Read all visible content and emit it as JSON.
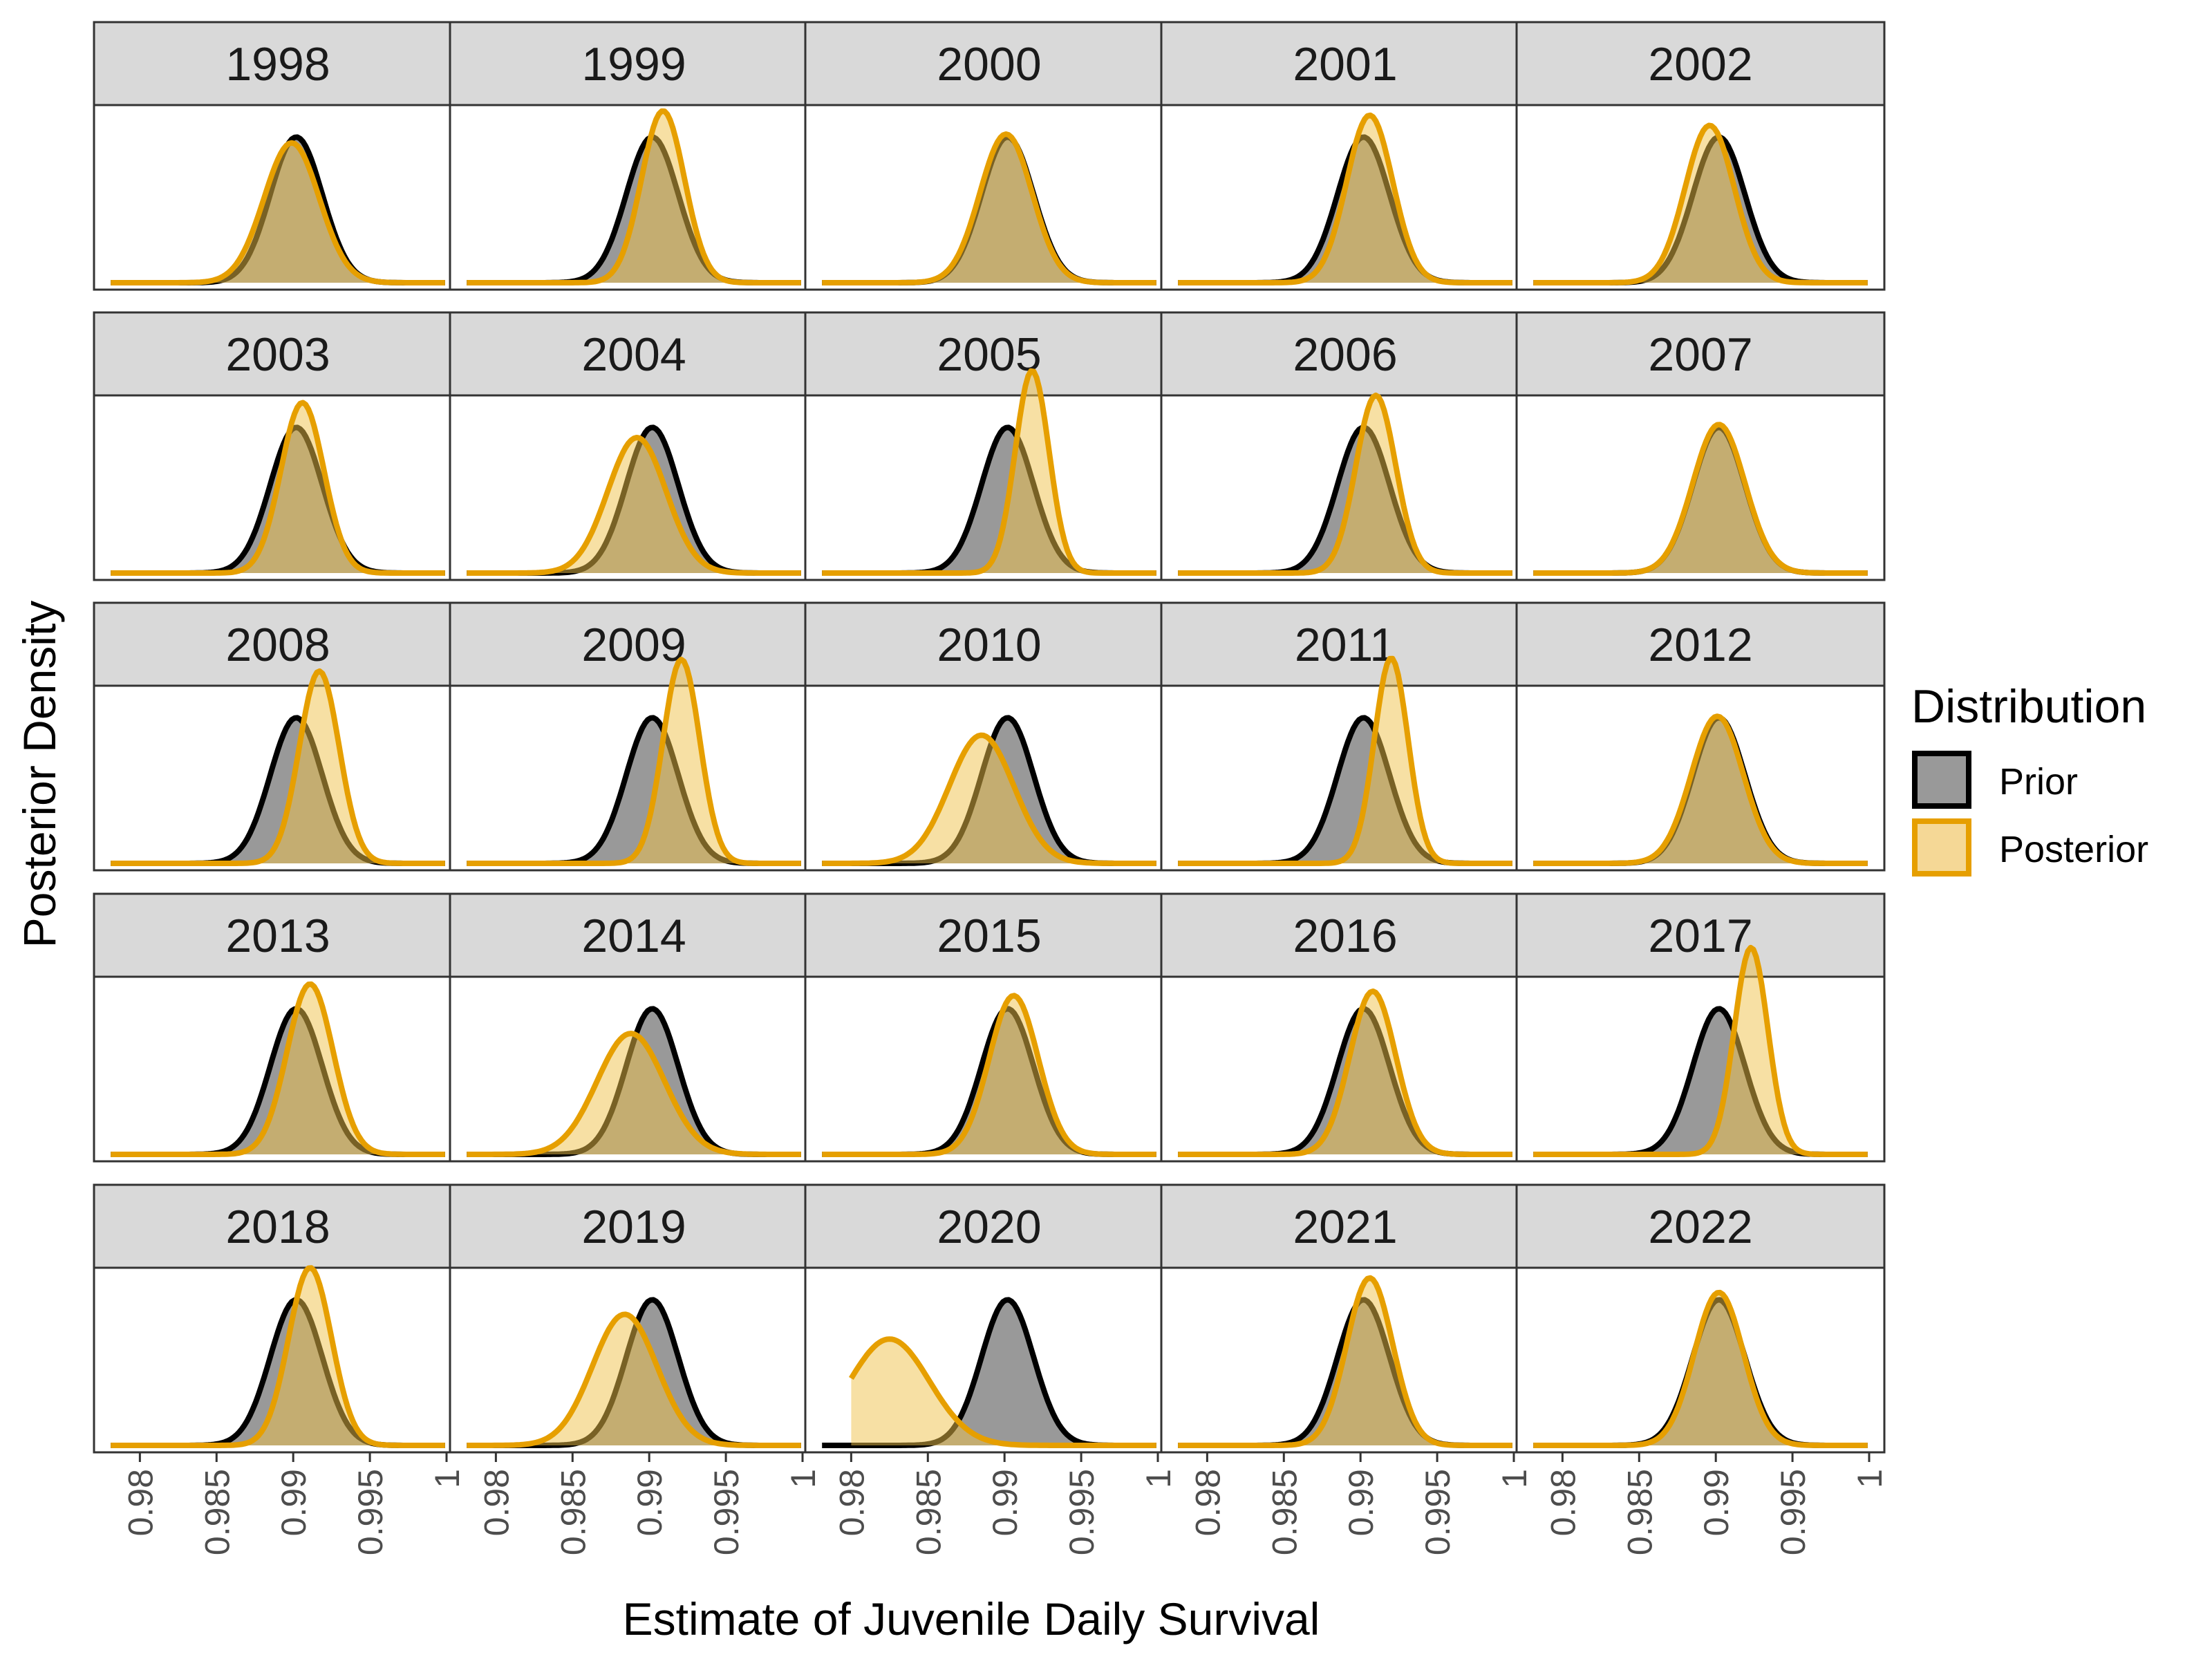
{
  "chart_data": {
    "type": "area",
    "subtype": "faceted density plot",
    "xlabel": "Estimate of Juvenile Daily Survival",
    "ylabel": "Posterior Density",
    "xlim": [
      0.978,
      1.0
    ],
    "x_ticks": [
      0.98,
      0.985,
      0.99,
      0.995,
      1
    ],
    "x_tick_labels": [
      "0.98",
      "0.985",
      "0.99",
      "0.995",
      "1"
    ],
    "facet_grid": {
      "rows": 5,
      "cols": 5
    },
    "legend": {
      "title": "Distribution",
      "position": "right",
      "entries": [
        {
          "label": "Prior",
          "line_color": "#000000",
          "fill": "#999999"
        },
        {
          "label": "Posterior",
          "line_color": "#E69F00",
          "fill": "#F5D896"
        }
      ]
    },
    "series": [
      {
        "name": "Prior",
        "distribution": "normal",
        "mean": 0.9902,
        "sd": 0.0017
      },
      {
        "name": "Posterior"
      }
    ],
    "facets": [
      {
        "year": "1998",
        "posterior_mean": 0.9899,
        "posterior_sd": 0.0018,
        "posterior_peak": 0.96
      },
      {
        "year": "1999",
        "posterior_mean": 0.9909,
        "posterior_sd": 0.0014,
        "posterior_peak": 1.18
      },
      {
        "year": "2000",
        "posterior_mean": 0.9901,
        "posterior_sd": 0.0017,
        "posterior_peak": 1.02
      },
      {
        "year": "2001",
        "posterior_mean": 0.9906,
        "posterior_sd": 0.0015,
        "posterior_peak": 1.15
      },
      {
        "year": "2002",
        "posterior_mean": 0.9896,
        "posterior_sd": 0.0016,
        "posterior_peak": 1.08
      },
      {
        "year": "2003",
        "posterior_mean": 0.9906,
        "posterior_sd": 0.0014,
        "posterior_peak": 1.17
      },
      {
        "year": "2004",
        "posterior_mean": 0.9892,
        "posterior_sd": 0.0019,
        "posterior_peak": 0.93
      },
      {
        "year": "2005",
        "posterior_mean": 0.9918,
        "posterior_sd": 0.0011,
        "posterior_peak": 1.39
      },
      {
        "year": "2006",
        "posterior_mean": 0.991,
        "posterior_sd": 0.0013,
        "posterior_peak": 1.22
      },
      {
        "year": "2007",
        "posterior_mean": 0.9902,
        "posterior_sd": 0.0017,
        "posterior_peak": 1.02
      },
      {
        "year": "2008",
        "posterior_mean": 0.9917,
        "posterior_sd": 0.0013,
        "posterior_peak": 1.32
      },
      {
        "year": "2009",
        "posterior_mean": 0.9921,
        "posterior_sd": 0.0012,
        "posterior_peak": 1.4
      },
      {
        "year": "2010",
        "posterior_mean": 0.9885,
        "posterior_sd": 0.0021,
        "posterior_peak": 0.88
      },
      {
        "year": "2011",
        "posterior_mean": 0.992,
        "posterior_sd": 0.0011,
        "posterior_peak": 1.41
      },
      {
        "year": "2012",
        "posterior_mean": 0.9901,
        "posterior_sd": 0.0017,
        "posterior_peak": 1.01
      },
      {
        "year": "2013",
        "posterior_mean": 0.9911,
        "posterior_sd": 0.0015,
        "posterior_peak": 1.17
      },
      {
        "year": "2014",
        "posterior_mean": 0.9888,
        "posterior_sd": 0.0022,
        "posterior_peak": 0.83
      },
      {
        "year": "2015",
        "posterior_mean": 0.9906,
        "posterior_sd": 0.0016,
        "posterior_peak": 1.09
      },
      {
        "year": "2016",
        "posterior_mean": 0.9908,
        "posterior_sd": 0.0015,
        "posterior_peak": 1.12
      },
      {
        "year": "2017",
        "posterior_mean": 0.9923,
        "posterior_sd": 0.0011,
        "posterior_peak": 1.42
      },
      {
        "year": "2018",
        "posterior_mean": 0.9911,
        "posterior_sd": 0.0014,
        "posterior_peak": 1.22
      },
      {
        "year": "2019",
        "posterior_mean": 0.9884,
        "posterior_sd": 0.0021,
        "posterior_peak": 0.9
      },
      {
        "year": "2020",
        "posterior_mean": 0.9825,
        "posterior_sd": 0.0026,
        "posterior_peak": 0.73,
        "posterior_x_min": 0.98
      },
      {
        "year": "2021",
        "posterior_mean": 0.9906,
        "posterior_sd": 0.0015,
        "posterior_peak": 1.15
      },
      {
        "year": "2022",
        "posterior_mean": 0.9902,
        "posterior_sd": 0.0016,
        "posterior_peak": 1.05
      }
    ]
  }
}
